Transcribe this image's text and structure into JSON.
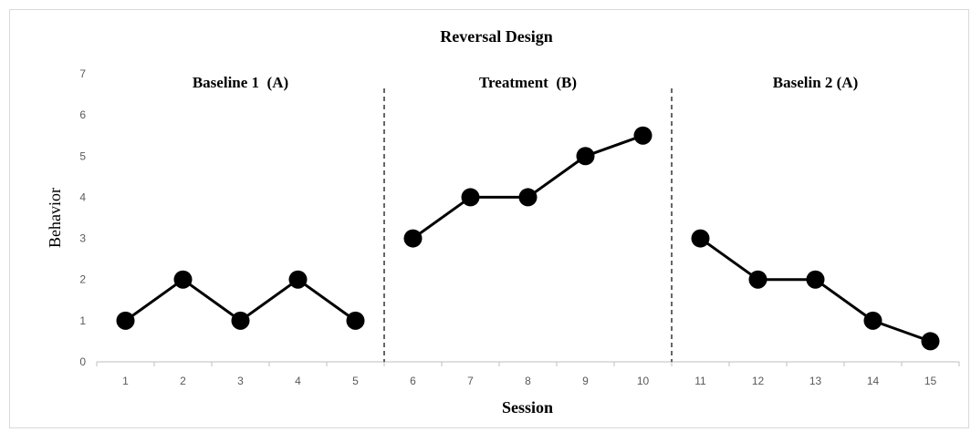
{
  "chart_data": {
    "type": "line",
    "title": "Reversal Design",
    "xlabel": "Session",
    "ylabel": "Behavior",
    "ylim": [
      0,
      7
    ],
    "yticks": [
      0,
      1,
      2,
      3,
      4,
      5,
      6,
      7
    ],
    "categories": [
      "1",
      "2",
      "3",
      "4",
      "5",
      "6",
      "7",
      "8",
      "9",
      "10",
      "11",
      "12",
      "13",
      "14",
      "15"
    ],
    "grid": false,
    "phases": [
      {
        "label": "Baseline 1  (A)",
        "sessions": [
          "1",
          "2",
          "3",
          "4",
          "5"
        ],
        "values": [
          1,
          2,
          1,
          2,
          1
        ]
      },
      {
        "label": "Treatment  (B)",
        "sessions": [
          "6",
          "7",
          "8",
          "9",
          "10"
        ],
        "values": [
          3,
          4,
          4,
          5,
          5.5
        ]
      },
      {
        "label": "Baselin 2 (A)",
        "sessions": [
          "11",
          "12",
          "13",
          "14",
          "15"
        ],
        "values": [
          3,
          2,
          2,
          1,
          0.5
        ]
      }
    ],
    "line_color": "#000000",
    "divider_color": "#000000"
  }
}
